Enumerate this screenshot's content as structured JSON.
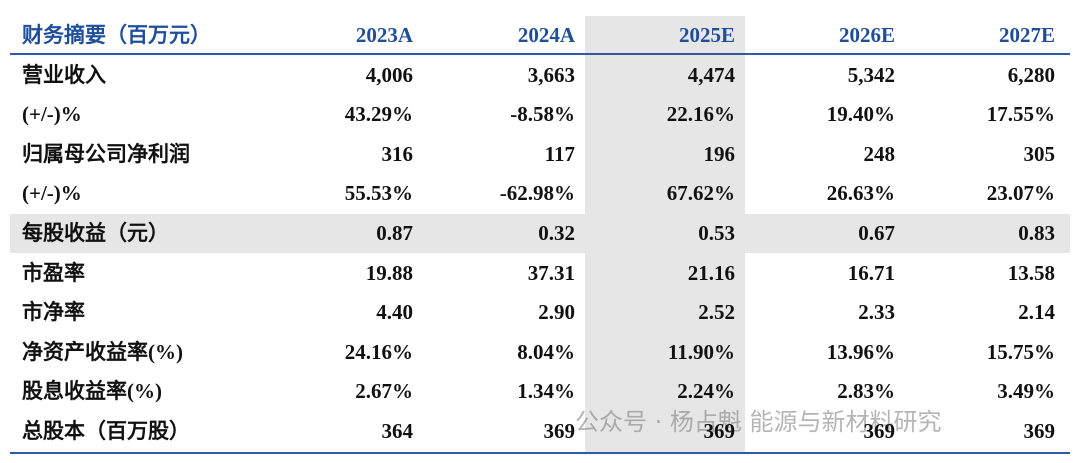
{
  "table": {
    "header": [
      "财务摘要（百万元）",
      "2023A",
      "2024A",
      "2025E",
      "2026E",
      "2027E"
    ],
    "rows": [
      [
        "营业收入",
        "4,006",
        "3,663",
        "4,474",
        "5,342",
        "6,280"
      ],
      [
        "(+/-)%",
        "43.29%",
        "-8.58%",
        "22.16%",
        "19.40%",
        "17.55%"
      ],
      [
        "归属母公司净利润",
        "316",
        "117",
        "196",
        "248",
        "305"
      ],
      [
        "(+/-)%",
        "55.53%",
        "-62.98%",
        "67.62%",
        "26.63%",
        "23.07%"
      ],
      [
        "每股收益（元）",
        "0.87",
        "0.32",
        "0.53",
        "0.67",
        "0.83"
      ],
      [
        "市盈率",
        "19.88",
        "37.31",
        "21.16",
        "16.71",
        "13.58"
      ],
      [
        "市净率",
        "4.40",
        "2.90",
        "2.52",
        "2.33",
        "2.14"
      ],
      [
        "净资产收益率(%)",
        "24.16%",
        "8.04%",
        "11.90%",
        "13.96%",
        "15.75%"
      ],
      [
        "股息收益率(%)",
        "2.67%",
        "1.34%",
        "2.24%",
        "2.83%",
        "3.49%"
      ],
      [
        "总股本（百万股）",
        "364",
        "369",
        "369",
        "369",
        "369"
      ]
    ]
  },
  "watermark": "公众号 · 杨占魁 能源与新材料研究"
}
